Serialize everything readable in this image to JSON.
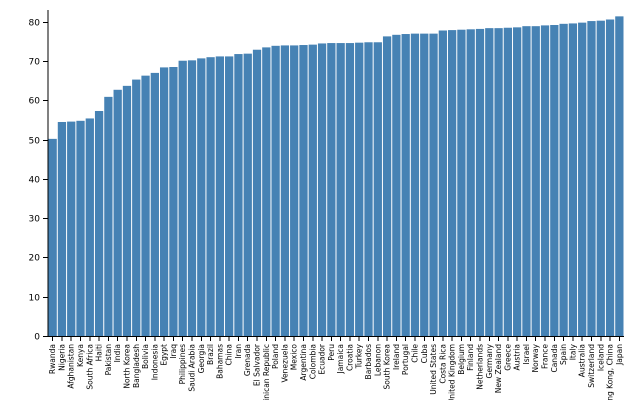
{
  "chart_data": {
    "type": "bar",
    "title": "",
    "xlabel": "",
    "ylabel": "",
    "ylim": [
      0,
      82
    ],
    "yticks": [
      0,
      10,
      20,
      30,
      40,
      50,
      60,
      70,
      80
    ],
    "grid": false,
    "legend": "none",
    "bar_color": "#4682b4",
    "categories": [
      "Rwanda",
      "Nigeria",
      "Afghanistan",
      "Kenya",
      "South Africa",
      "Haiti",
      "Pakistan",
      "India",
      "North Korea",
      "Bangladesh",
      "Bolivia",
      "Indonesia",
      "Egypt",
      "Iraq",
      "Philippines",
      "Saudi Arabia",
      "Georgia",
      "Brazil",
      "Bahamas",
      "China",
      "Iran",
      "Grenada",
      "El Salvador",
      "Dominican Republic",
      "Poland",
      "Venezuela",
      "Mexico",
      "Argentina",
      "Colombia",
      "Ecuador",
      "Peru",
      "Jamaica",
      "Croatia",
      "Turkey",
      "Barbados",
      "Lebanon",
      "South Korea",
      "Ireland",
      "Portugal",
      "Chile",
      "Cuba",
      "United States",
      "Costa Rica",
      "United Kingdom",
      "Belgium",
      "Finland",
      "Netherlands",
      "Germany",
      "New Zealand",
      "Greece",
      "Austria",
      "Israel",
      "Norway",
      "France",
      "Canada",
      "Spain",
      "Italy",
      "Australia",
      "Switzerland",
      "Iceland",
      "Hong Kong, China",
      "Japan"
    ],
    "values": [
      50.2,
      54.5,
      54.6,
      54.8,
      55.4,
      57.3,
      60.9,
      62.7,
      63.7,
      65.3,
      66.3,
      67.0,
      68.4,
      68.5,
      70.1,
      70.2,
      70.7,
      71.0,
      71.2,
      71.2,
      71.8,
      71.9,
      72.9,
      73.5,
      73.9,
      74.0,
      74.0,
      74.1,
      74.2,
      74.5,
      74.6,
      74.6,
      74.6,
      74.7,
      74.8,
      74.8,
      76.3,
      76.7,
      76.9,
      77.0,
      77.0,
      77.0,
      77.8,
      77.9,
      78.0,
      78.1,
      78.2,
      78.4,
      78.4,
      78.5,
      78.6,
      78.9,
      78.9,
      79.1,
      79.2,
      79.5,
      79.6,
      79.8,
      80.2,
      80.3,
      80.6,
      81.4
    ]
  }
}
